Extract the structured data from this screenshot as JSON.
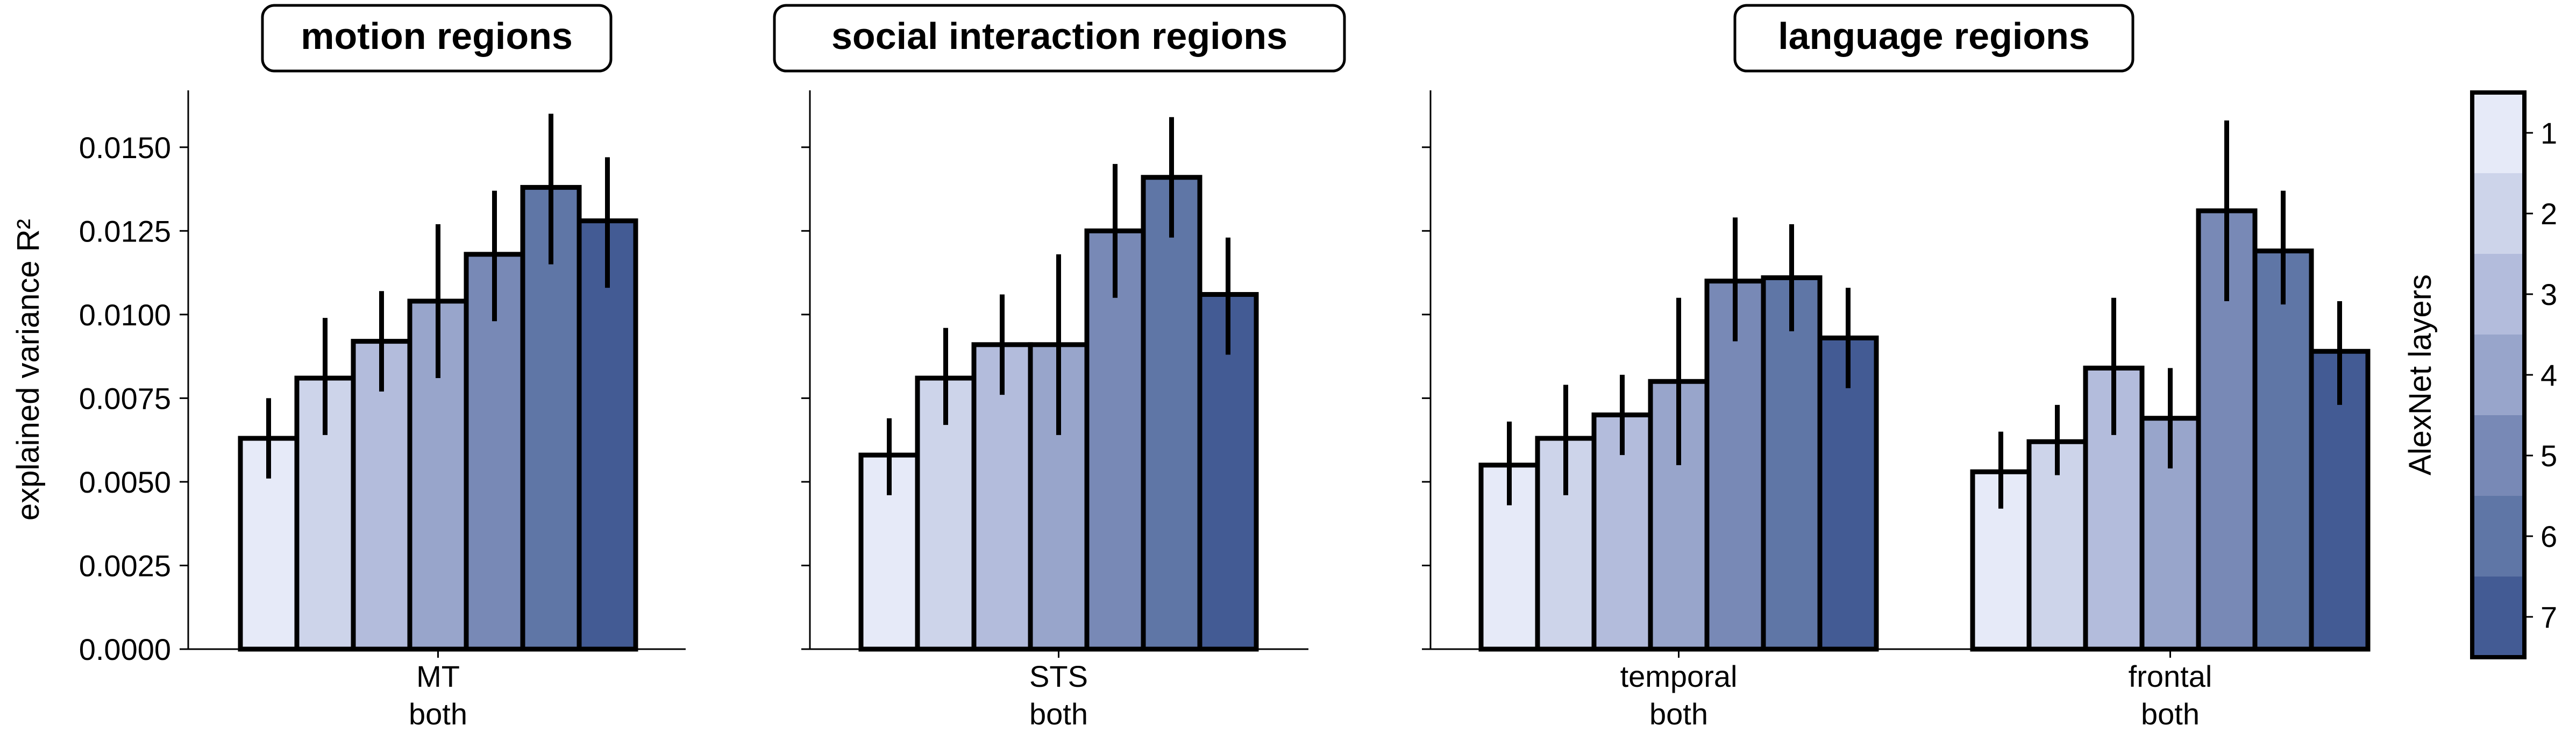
{
  "chart_data": [
    {
      "type": "bar",
      "title": "motion regions",
      "categories": [
        "MT\nboth"
      ],
      "ylabel": "explained variance R²",
      "ylim": [
        0,
        0.0167
      ],
      "yticks": [
        "0.0000",
        "0.0025",
        "0.0050",
        "0.0075",
        "0.0100",
        "0.0125",
        "0.0150"
      ],
      "grid": false,
      "series": [
        {
          "name": "1",
          "values": [
            0.0063
          ],
          "error_low": [
            0.0051
          ],
          "error_high": [
            0.0075
          ]
        },
        {
          "name": "2",
          "values": [
            0.0081
          ],
          "error_low": [
            0.0064
          ],
          "error_high": [
            0.0099
          ]
        },
        {
          "name": "3",
          "values": [
            0.0092
          ],
          "error_low": [
            0.0077
          ],
          "error_high": [
            0.0107
          ]
        },
        {
          "name": "4",
          "values": [
            0.0104
          ],
          "error_low": [
            0.0081
          ],
          "error_high": [
            0.0127
          ]
        },
        {
          "name": "5",
          "values": [
            0.0118
          ],
          "error_low": [
            0.0098
          ],
          "error_high": [
            0.0137
          ]
        },
        {
          "name": "6",
          "values": [
            0.0138
          ],
          "error_low": [
            0.0115
          ],
          "error_high": [
            0.016
          ]
        },
        {
          "name": "7",
          "values": [
            0.0128
          ],
          "error_low": [
            0.0108
          ],
          "error_high": [
            0.0147
          ]
        }
      ]
    },
    {
      "type": "bar",
      "title": "social interaction regions",
      "categories": [
        "STS\nboth"
      ],
      "ylim": [
        0,
        0.0167
      ],
      "grid": false,
      "series": [
        {
          "name": "1",
          "values": [
            0.0058
          ],
          "error_low": [
            0.0046
          ],
          "error_high": [
            0.0069
          ]
        },
        {
          "name": "2",
          "values": [
            0.0081
          ],
          "error_low": [
            0.0067
          ],
          "error_high": [
            0.0096
          ]
        },
        {
          "name": "3",
          "values": [
            0.0091
          ],
          "error_low": [
            0.0076
          ],
          "error_high": [
            0.0106
          ]
        },
        {
          "name": "4",
          "values": [
            0.0091
          ],
          "error_low": [
            0.0064
          ],
          "error_high": [
            0.0118
          ]
        },
        {
          "name": "5",
          "values": [
            0.0125
          ],
          "error_low": [
            0.0105
          ],
          "error_high": [
            0.0145
          ]
        },
        {
          "name": "6",
          "values": [
            0.0141
          ],
          "error_low": [
            0.0123
          ],
          "error_high": [
            0.0159
          ]
        },
        {
          "name": "7",
          "values": [
            0.0106
          ],
          "error_low": [
            0.0088
          ],
          "error_high": [
            0.0123
          ]
        }
      ]
    },
    {
      "type": "bar",
      "title": "language regions",
      "categories": [
        "temporal\nboth",
        "frontal\nboth"
      ],
      "ylim": [
        0,
        0.0167
      ],
      "grid": false,
      "series": [
        {
          "name": "1",
          "values": [
            0.0055,
            0.0053
          ],
          "error_low": [
            0.0043,
            0.0042
          ],
          "error_high": [
            0.0068,
            0.0065
          ]
        },
        {
          "name": "2",
          "values": [
            0.0063,
            0.0062
          ],
          "error_low": [
            0.0046,
            0.0052
          ],
          "error_high": [
            0.0079,
            0.0073
          ]
        },
        {
          "name": "3",
          "values": [
            0.007,
            0.0084
          ],
          "error_low": [
            0.0058,
            0.0064
          ],
          "error_high": [
            0.0082,
            0.0105
          ]
        },
        {
          "name": "4",
          "values": [
            0.008,
            0.0069
          ],
          "error_low": [
            0.0055,
            0.0054
          ],
          "error_high": [
            0.0105,
            0.0084
          ]
        },
        {
          "name": "5",
          "values": [
            0.011,
            0.0131
          ],
          "error_low": [
            0.0092,
            0.0104
          ],
          "error_high": [
            0.0129,
            0.0158
          ]
        },
        {
          "name": "6",
          "values": [
            0.0111,
            0.0119
          ],
          "error_low": [
            0.0095,
            0.0103
          ],
          "error_high": [
            0.0127,
            0.0137
          ]
        },
        {
          "name": "7",
          "values": [
            0.0093,
            0.0089
          ],
          "error_low": [
            0.0078,
            0.0073
          ],
          "error_high": [
            0.0108,
            0.0104
          ]
        }
      ]
    }
  ],
  "colorbar": {
    "label": "AlexNet layers",
    "ticks": [
      "1",
      "2",
      "3",
      "4",
      "5",
      "6",
      "7"
    ],
    "colors": [
      "#e6eaf8",
      "#cdd4ea",
      "#b3bcdc",
      "#98a5cb",
      "#7889b6",
      "#5f76a6",
      "#435b94"
    ]
  },
  "style": {
    "bar_edge_color": "#000000",
    "error_bar_color": "#000000"
  }
}
